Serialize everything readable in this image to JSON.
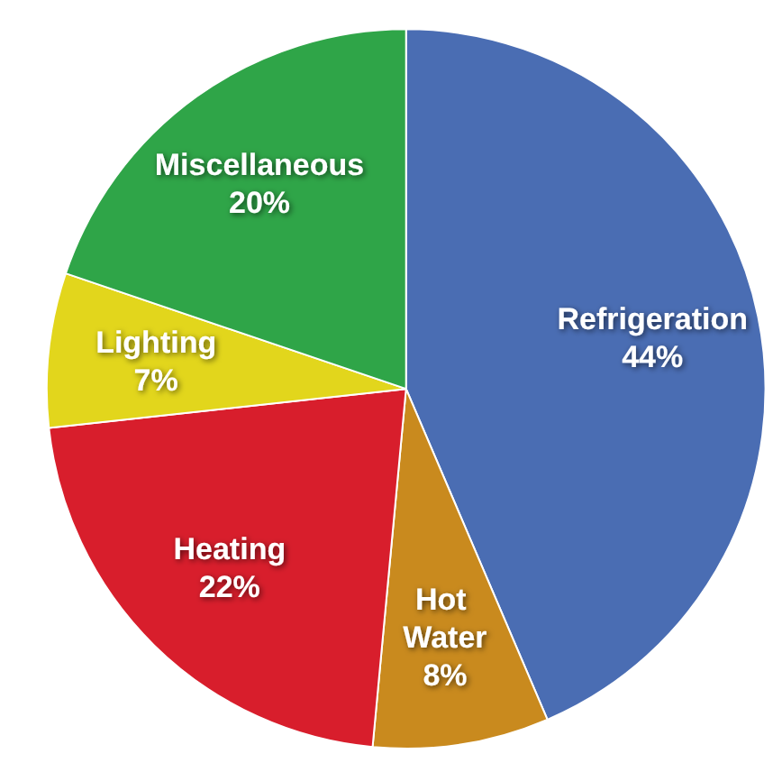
{
  "chart_data": {
    "type": "pie",
    "categories": [
      "Refrigeration",
      "Hot Water",
      "Heating",
      "Lighting",
      "Miscellaneous"
    ],
    "values": [
      44,
      8,
      22,
      7,
      20
    ],
    "colors": [
      "#4a6db3",
      "#c98a1e",
      "#d81e2c",
      "#e2d61c",
      "#2fa548"
    ],
    "value_labels": [
      "44%",
      "8%",
      "22%",
      "7%",
      "20%"
    ],
    "legend": false
  }
}
